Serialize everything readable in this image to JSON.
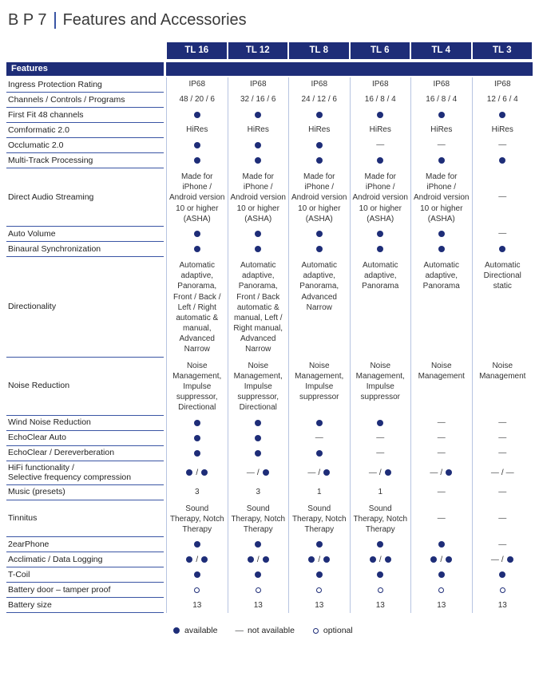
{
  "title": {
    "prefix": "B P 7",
    "text": "Features and Accessories"
  },
  "columns": [
    "TL 16",
    "TL 12",
    "TL 8",
    "TL 6",
    "TL 4",
    "TL 3"
  ],
  "section_header": "Features",
  "rows": [
    {
      "label": "Ingress Protection Rating",
      "cells": [
        "IP68",
        "IP68",
        "IP68",
        "IP68",
        "IP68",
        "IP68"
      ]
    },
    {
      "label": "Channels / Controls / Programs",
      "cells": [
        "48 / 20 / 6",
        "32 / 16 / 6",
        "24 / 12 / 6",
        "16 / 8 / 4",
        "16 / 8 / 4",
        "12 / 6 / 4"
      ]
    },
    {
      "label": "First Fit 48 channels",
      "cells": [
        "●",
        "●",
        "●",
        "●",
        "●",
        "●"
      ]
    },
    {
      "label": "Comformatic 2.0",
      "cells": [
        "HiRes",
        "HiRes",
        "HiRes",
        "HiRes",
        "HiRes",
        "HiRes"
      ]
    },
    {
      "label": "Occlumatic 2.0",
      "cells": [
        "●",
        "●",
        "●",
        "—",
        "—",
        "—"
      ]
    },
    {
      "label": "Multi-Track Processing",
      "cells": [
        "●",
        "●",
        "●",
        "●",
        "●",
        "●"
      ]
    },
    {
      "label": "Direct Audio Streaming",
      "cells": [
        "Made for iPhone / Android version 10 or higher (ASHA)",
        "Made for iPhone / Android version 10 or higher (ASHA)",
        "Made for iPhone / Android version 10 or higher (ASHA)",
        "Made for iPhone / Android version 10 or higher (ASHA)",
        "Made for iPhone / Android version 10 or higher (ASHA)",
        "—"
      ]
    },
    {
      "label": "Auto Volume",
      "cells": [
        "●",
        "●",
        "●",
        "●",
        "●",
        "—"
      ]
    },
    {
      "label": "Binaural Synchronization",
      "cells": [
        "●",
        "●",
        "●",
        "●",
        "●",
        "●"
      ]
    },
    {
      "label": "Directionality",
      "cells": [
        "Automatic adaptive, Panorama, Front / Back / Left / Right automatic & manual, Advanced Narrow",
        "Automatic adaptive, Panorama, Front / Back automatic & manual, Left / Right manual, Advanced Narrow",
        "Automatic adaptive, Panorama, Advanced Narrow",
        "Automatic adaptive, Panorama",
        "Automatic adaptive, Panorama",
        "Automatic Directional static"
      ]
    },
    {
      "label": "Noise Reduction",
      "cells": [
        "Noise Management, Impulse suppressor, Directional",
        "Noise Management, Impulse suppressor, Directional",
        "Noise Management, Impulse suppressor",
        "Noise Management, Impulse suppressor",
        "Noise Management",
        "Noise Management"
      ]
    },
    {
      "label": "Wind Noise Reduction",
      "cells": [
        "●",
        "●",
        "●",
        "●",
        "—",
        "—"
      ]
    },
    {
      "label": "EchoClear Auto",
      "cells": [
        "●",
        "●",
        "—",
        "—",
        "—",
        "—"
      ]
    },
    {
      "label": "EchoClear / Dereverberation",
      "cells": [
        "●",
        "●",
        "●",
        "—",
        "—",
        "—"
      ]
    },
    {
      "label": "HiFi functionality /\nSelective frequency compression",
      "cells": [
        "● / ●",
        "— / ●",
        "— / ●",
        "— / ●",
        "— / ●",
        "— / —"
      ]
    },
    {
      "label": "Music (presets)",
      "cells": [
        "3",
        "3",
        "1",
        "1",
        "—",
        "—"
      ]
    },
    {
      "label": "Tinnitus",
      "cells": [
        "Sound Therapy, Notch Therapy",
        "Sound Therapy, Notch Therapy",
        "Sound Therapy, Notch Therapy",
        "Sound Therapy, Notch Therapy",
        "—",
        "—"
      ]
    },
    {
      "label": "2earPhone",
      "cells": [
        "●",
        "●",
        "●",
        "●",
        "●",
        "—"
      ]
    },
    {
      "label": "Acclimatic / Data Logging",
      "cells": [
        "● / ●",
        "● / ●",
        "● / ●",
        "● / ●",
        "● / ●",
        "— / ●"
      ]
    },
    {
      "label": "T-Coil",
      "cells": [
        "●",
        "●",
        "●",
        "●",
        "●",
        "●"
      ]
    },
    {
      "label": "Battery door – tamper proof",
      "cells": [
        "○",
        "○",
        "○",
        "○",
        "○",
        "○"
      ]
    },
    {
      "label": "Battery size",
      "cells": [
        "13",
        "13",
        "13",
        "13",
        "13",
        "13"
      ]
    }
  ],
  "legend": {
    "items": [
      {
        "symbol": "●",
        "label": "available"
      },
      {
        "symbol": "—",
        "label": "not available"
      },
      {
        "symbol": "○",
        "label": "optional"
      }
    ]
  },
  "colors": {
    "navy": "#1e2d78",
    "separator": "#b7c4e1",
    "label_underline": "#3a55a4",
    "dash": "#46484b",
    "text": "#333333"
  }
}
